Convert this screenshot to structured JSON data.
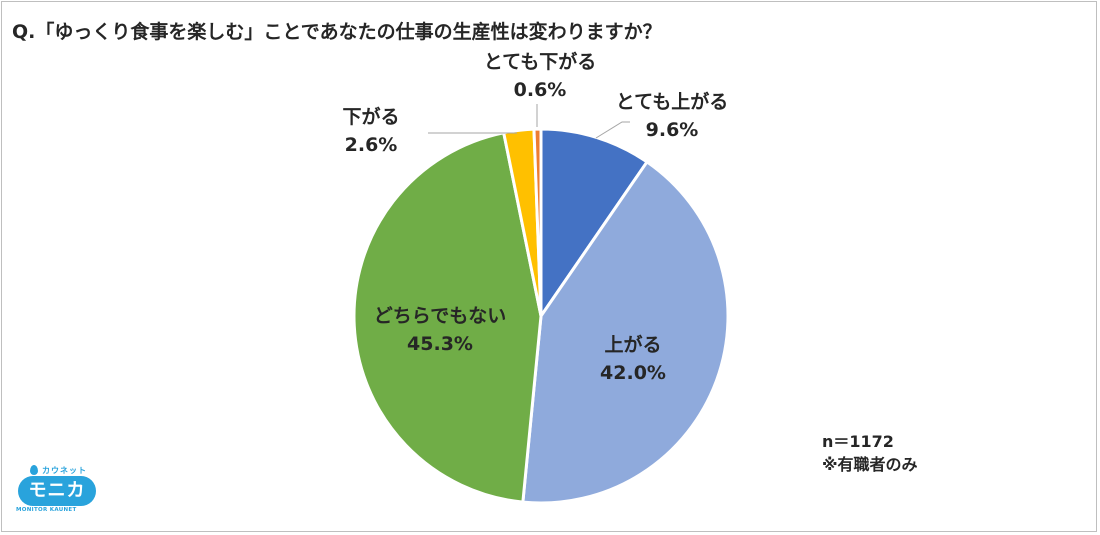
{
  "title": "Q.「ゆっくり食事を楽しむ」ことであなたの仕事の生産性は変わりますか？",
  "chart_data": {
    "type": "pie",
    "title": "Q.「ゆっくり食事を楽しむ」ことであなたの仕事の生産性は変わりますか？",
    "slices": [
      {
        "label": "とても上がる",
        "value": 9.6,
        "value_label": "9.6%",
        "color": "#4472C4"
      },
      {
        "label": "上がる",
        "value": 42.0,
        "value_label": "42.0%",
        "color": "#8FAADC"
      },
      {
        "label": "どちらでもない",
        "value": 45.3,
        "value_label": "45.3%",
        "color": "#70AD47"
      },
      {
        "label": "下がる",
        "value": 2.6,
        "value_label": "2.6%",
        "color": "#FFC000"
      },
      {
        "label": "とても下がる",
        "value": 0.6,
        "value_label": "0.6%",
        "color": "#ED7D31"
      }
    ]
  },
  "note": {
    "sample": "n＝1172",
    "scope": "※有職者のみ"
  },
  "logo": {
    "kana": "カウネット",
    "name": "モニカ",
    "sub": "MONITOR KAUNET"
  }
}
